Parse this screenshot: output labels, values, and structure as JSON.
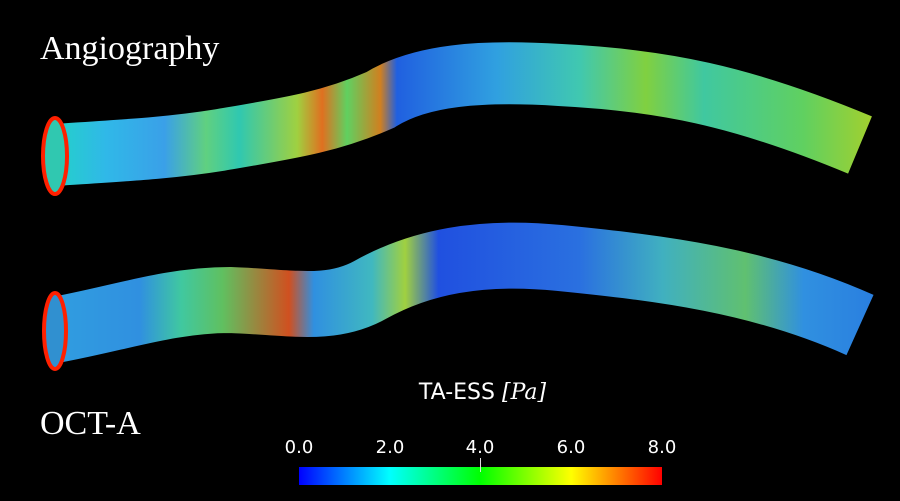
{
  "panels": {
    "top_label": "Angiography",
    "bottom_label": "OCT-A"
  },
  "colorbar": {
    "title": "TA-ESS",
    "unit": "[Pa]",
    "ticks": [
      "0.0",
      "2.0",
      "4.0",
      "6.0",
      "8.0"
    ],
    "range": [
      0.0,
      8.0
    ],
    "colormap": [
      "#0000ff",
      "#00ffff",
      "#00ff00",
      "#ffff00",
      "#ff0000"
    ]
  }
}
